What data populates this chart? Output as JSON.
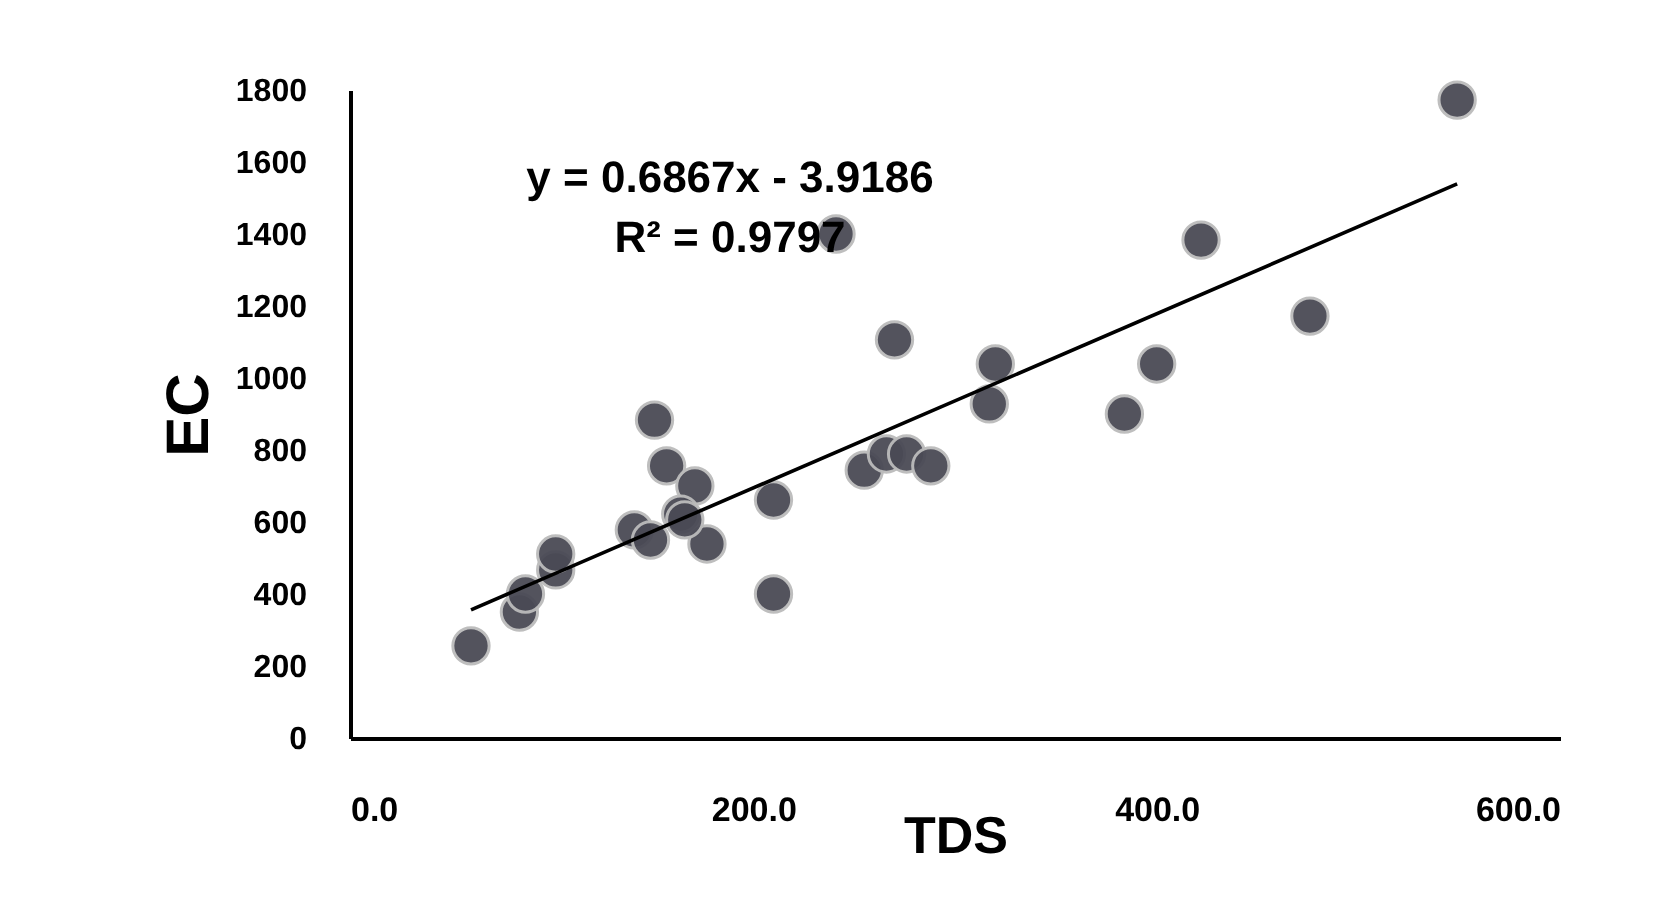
{
  "chart_data": {
    "type": "scatter",
    "xlabel": "TDS",
    "ylabel": "EC",
    "xlim": [
      0,
      600
    ],
    "xticks": [
      {
        "value": 0,
        "label": "0.0"
      },
      {
        "value": 200,
        "label": "200.0"
      },
      {
        "value": 400,
        "label": "400.0"
      },
      {
        "value": 600,
        "label": "600.0"
      }
    ],
    "ylim": [
      0,
      1800
    ],
    "yticks": [
      0,
      200,
      400,
      600,
      800,
      1000,
      1200,
      1400,
      1600,
      1800
    ],
    "grid": false,
    "legend": false,
    "annotations": [
      "y = 0.6867x - 3.9186",
      "R² = 0.9797"
    ],
    "series": [
      {
        "marker": "circle",
        "color": "#4a4a55",
        "x": [
          60,
          84,
          87,
          102,
          102,
          141,
          149,
          151,
          157,
          171,
          164,
          177,
          166,
          210,
          210,
          241,
          270,
          255,
          266,
          276,
          288,
          320,
          317,
          384,
          400,
          422,
          476,
          549
        ],
        "values": [
          256,
          350,
          400,
          467,
          511,
          578,
          550,
          883,
          756,
          700,
          622,
          539,
          606,
          400,
          661,
          1400,
          1106,
          744,
          789,
          789,
          756,
          1039,
          928,
          900,
          1039,
          1383,
          1172,
          1772
        ]
      },
      {
        "type": "line",
        "marker": "none",
        "color": "#000000",
        "line_style": "solid",
        "x": [
          60,
          549
        ],
        "values": [
          356,
          1539
        ]
      }
    ]
  }
}
